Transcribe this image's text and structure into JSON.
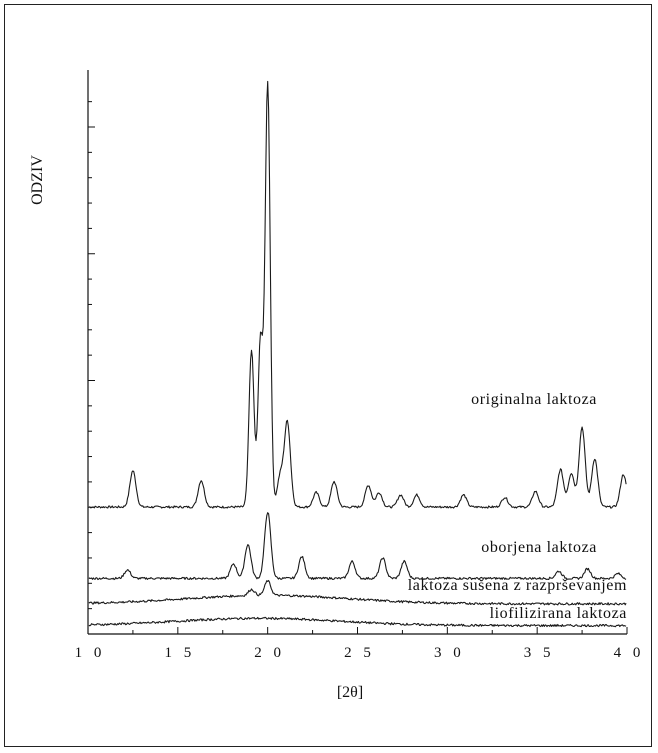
{
  "chart_data": {
    "type": "line",
    "title": "",
    "xlabel": "[2θ]",
    "ylabel": "ODZIV",
    "xlim": [
      10,
      40
    ],
    "x_ticks": [
      10,
      15,
      20,
      25,
      30,
      35,
      40
    ],
    "x_tick_labels": [
      "1 0",
      "1 5",
      "2 0",
      "2 5",
      "3 0",
      "3 5",
      "4 0"
    ],
    "y_tick_labels_shown": false,
    "grid": false,
    "legend": "none (series labels placed above each trace)",
    "line_color": "#1a1a1a",
    "series": [
      {
        "name": "originalna laktoza",
        "baseline": 0.0,
        "peaks": [
          [
            12.5,
            0.3
          ],
          [
            16.3,
            0.22
          ],
          [
            19.1,
            1.3
          ],
          [
            19.6,
            1.38
          ],
          [
            20.0,
            3.5
          ],
          [
            20.7,
            0.25
          ],
          [
            21.1,
            0.7
          ],
          [
            22.7,
            0.12
          ],
          [
            23.7,
            0.21
          ],
          [
            25.6,
            0.18
          ],
          [
            26.2,
            0.12
          ],
          [
            27.4,
            0.1
          ],
          [
            28.3,
            0.1
          ],
          [
            30.9,
            0.1
          ],
          [
            33.2,
            0.08
          ],
          [
            34.9,
            0.13
          ],
          [
            36.3,
            0.31
          ],
          [
            36.9,
            0.28
          ],
          [
            37.5,
            0.66
          ],
          [
            38.2,
            0.4
          ],
          [
            39.8,
            0.27
          ]
        ]
      },
      {
        "name": "oborjena laktoza",
        "baseline": -0.59,
        "peaks": [
          [
            12.2,
            0.07
          ],
          [
            18.1,
            0.12
          ],
          [
            18.9,
            0.28
          ],
          [
            20.0,
            0.55
          ],
          [
            21.9,
            0.18
          ],
          [
            24.7,
            0.14
          ],
          [
            26.4,
            0.17
          ],
          [
            27.6,
            0.14
          ],
          [
            36.2,
            0.06
          ],
          [
            37.8,
            0.08
          ],
          [
            39.5,
            0.04
          ]
        ]
      },
      {
        "name": "laktoza sušena z razprševanjem",
        "baseline": -0.8,
        "halo": {
          "center": 20.0,
          "height": 0.07
        },
        "peaks": [
          [
            19.1,
            0.05
          ],
          [
            20.0,
            0.12
          ]
        ]
      },
      {
        "name": "liofilizirana laktoza",
        "baseline": -0.98,
        "halo": {
          "center": 19.5,
          "height": 0.06
        },
        "peaks": []
      }
    ]
  }
}
